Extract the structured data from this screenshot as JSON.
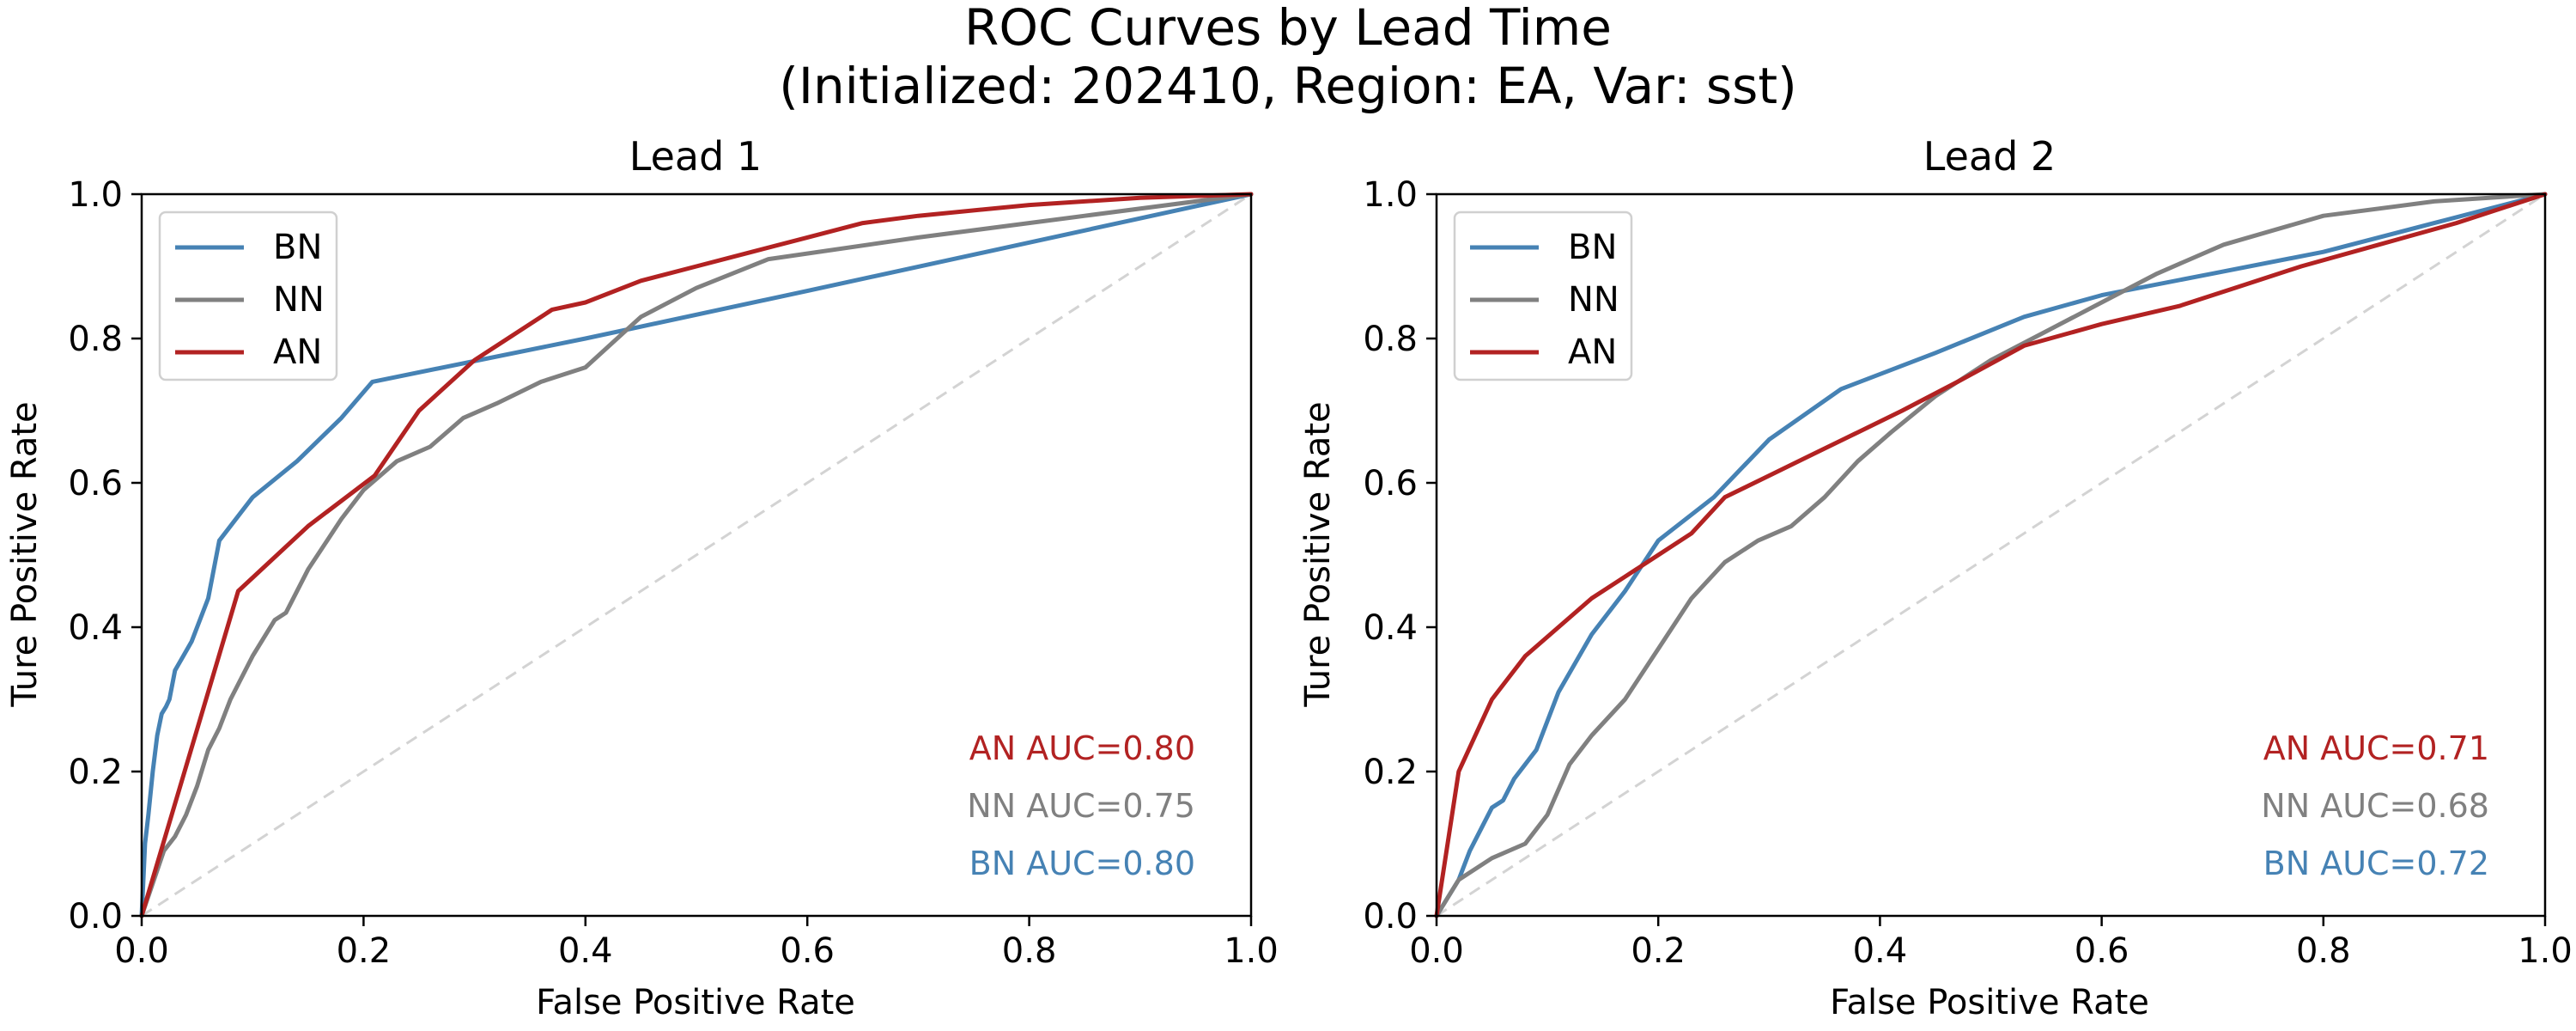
{
  "figure": {
    "title_line1": "ROC Curves by Lead Time",
    "title_line2": "(Initialized: 202410, Region: EA, Var: sst)"
  },
  "colors": {
    "BN": "#4682b4",
    "NN": "#808080",
    "AN": "#b22222",
    "diagonal": "#d3d3d3",
    "axes": "#000000"
  },
  "chart_data": [
    {
      "type": "line",
      "title": "Lead 1",
      "xlabel": "False Positive Rate",
      "ylabel": "Ture Positive Rate",
      "xlim": [
        0,
        1
      ],
      "ylim": [
        0,
        1
      ],
      "xticks": [
        "0.0",
        "0.2",
        "0.4",
        "0.6",
        "0.8",
        "1.0"
      ],
      "yticks": [
        "0.0",
        "0.2",
        "0.4",
        "0.6",
        "0.8",
        "1.0"
      ],
      "grid": false,
      "legend_position": "top-left",
      "legend": [
        "BN",
        "NN",
        "AN"
      ],
      "reference_line": "diagonal",
      "annotations": [
        "AN AUC=0.80",
        "NN AUC=0.75",
        "BN AUC=0.80"
      ],
      "series": [
        {
          "name": "BN",
          "x": [
            0,
            0.003,
            0.006,
            0.01,
            0.014,
            0.018,
            0.022,
            0.025,
            0.03,
            0.045,
            0.06,
            0.07,
            0.1,
            0.14,
            0.18,
            0.208,
            0.4,
            0.6,
            0.8,
            1.0
          ],
          "y": [
            0,
            0.1,
            0.14,
            0.2,
            0.25,
            0.28,
            0.29,
            0.3,
            0.34,
            0.38,
            0.44,
            0.52,
            0.58,
            0.63,
            0.69,
            0.74,
            0.8,
            0.866,
            0.933,
            1.0
          ]
        },
        {
          "name": "NN",
          "x": [
            0,
            0.02,
            0.03,
            0.04,
            0.05,
            0.06,
            0.07,
            0.08,
            0.1,
            0.12,
            0.13,
            0.15,
            0.18,
            0.2,
            0.23,
            0.26,
            0.29,
            0.32,
            0.36,
            0.4,
            0.45,
            0.5,
            0.565,
            0.7,
            0.85,
            1.0
          ],
          "y": [
            0,
            0.09,
            0.11,
            0.14,
            0.18,
            0.23,
            0.26,
            0.3,
            0.36,
            0.41,
            0.42,
            0.48,
            0.55,
            0.59,
            0.63,
            0.65,
            0.69,
            0.71,
            0.74,
            0.76,
            0.83,
            0.87,
            0.91,
            0.94,
            0.97,
            1.0
          ]
        },
        {
          "name": "AN",
          "x": [
            0,
            0.087,
            0.15,
            0.21,
            0.25,
            0.3,
            0.33,
            0.37,
            0.4,
            0.45,
            0.5,
            0.55,
            0.6,
            0.65,
            0.7,
            0.8,
            0.9,
            1.0
          ],
          "y": [
            0,
            0.45,
            0.54,
            0.61,
            0.7,
            0.77,
            0.8,
            0.84,
            0.85,
            0.88,
            0.9,
            0.92,
            0.94,
            0.96,
            0.97,
            0.985,
            0.995,
            1.0
          ]
        }
      ]
    },
    {
      "type": "line",
      "title": "Lead 2",
      "xlabel": "False Positive Rate",
      "ylabel": "Ture Positive Rate",
      "xlim": [
        0,
        1
      ],
      "ylim": [
        0,
        1
      ],
      "xticks": [
        "0.0",
        "0.2",
        "0.4",
        "0.6",
        "0.8",
        "1.0"
      ],
      "yticks": [
        "0.0",
        "0.2",
        "0.4",
        "0.6",
        "0.8",
        "1.0"
      ],
      "grid": false,
      "legend_position": "top-left",
      "legend": [
        "BN",
        "NN",
        "AN"
      ],
      "reference_line": "diagonal",
      "annotations": [
        "AN AUC=0.71",
        "NN AUC=0.68",
        "BN AUC=0.72"
      ],
      "series": [
        {
          "name": "BN",
          "x": [
            0,
            0.02,
            0.03,
            0.04,
            0.05,
            0.06,
            0.07,
            0.09,
            0.11,
            0.14,
            0.17,
            0.2,
            0.25,
            0.3,
            0.365,
            0.45,
            0.53,
            0.6,
            0.7,
            0.8,
            0.9,
            1.0
          ],
          "y": [
            0,
            0.05,
            0.09,
            0.12,
            0.15,
            0.16,
            0.19,
            0.23,
            0.31,
            0.39,
            0.45,
            0.52,
            0.58,
            0.66,
            0.73,
            0.78,
            0.83,
            0.86,
            0.89,
            0.92,
            0.96,
            1.0
          ]
        },
        {
          "name": "NN",
          "x": [
            0,
            0.02,
            0.05,
            0.08,
            0.1,
            0.12,
            0.14,
            0.17,
            0.2,
            0.23,
            0.26,
            0.29,
            0.32,
            0.35,
            0.38,
            0.41,
            0.45,
            0.5,
            0.55,
            0.6,
            0.65,
            0.71,
            0.8,
            0.9,
            1.0
          ],
          "y": [
            0,
            0.05,
            0.08,
            0.1,
            0.14,
            0.21,
            0.25,
            0.3,
            0.37,
            0.44,
            0.49,
            0.52,
            0.54,
            0.58,
            0.63,
            0.67,
            0.72,
            0.77,
            0.81,
            0.85,
            0.89,
            0.93,
            0.97,
            0.99,
            1.0
          ]
        },
        {
          "name": "AN",
          "x": [
            0,
            0.02,
            0.05,
            0.08,
            0.11,
            0.14,
            0.17,
            0.2,
            0.23,
            0.26,
            0.3,
            0.34,
            0.38,
            0.42,
            0.47,
            0.53,
            0.6,
            0.67,
            0.72,
            0.78,
            0.85,
            0.92,
            1.0
          ],
          "y": [
            0,
            0.2,
            0.3,
            0.36,
            0.4,
            0.44,
            0.47,
            0.5,
            0.53,
            0.58,
            0.61,
            0.64,
            0.67,
            0.7,
            0.74,
            0.79,
            0.82,
            0.845,
            0.87,
            0.9,
            0.93,
            0.96,
            1.0
          ]
        }
      ]
    }
  ]
}
